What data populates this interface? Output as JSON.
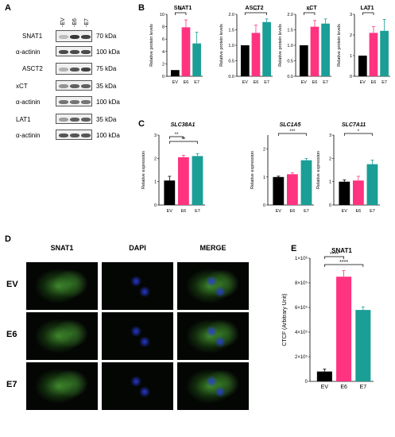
{
  "panel_labels": {
    "a": "A",
    "b": "B",
    "c": "C",
    "d": "D",
    "e": "E"
  },
  "western_blot": {
    "lanes": [
      "-EV",
      "-E6",
      "-E7"
    ],
    "rows": [
      {
        "label": "SNAT1",
        "kda": "70 kDa"
      },
      {
        "label": "α-actinin",
        "kda": "100 kDa"
      },
      {
        "label": "ASCT2",
        "kda": "75 kDa"
      },
      {
        "label": "xCT",
        "kda": "35 kDa"
      },
      {
        "label": "α-actinin",
        "kda": "100 kDa"
      },
      {
        "label": "LAT1",
        "kda": "35 kDa"
      },
      {
        "label": "α-actinin",
        "kda": "100 kDa"
      }
    ]
  },
  "microscopy": {
    "columns": [
      "SNAT1",
      "DAPI",
      "MERGE"
    ],
    "rows": [
      "EV",
      "E6",
      "E7"
    ]
  },
  "colors": {
    "EV": "#000000",
    "E6": "#ff3380",
    "E7": "#1a9e96"
  },
  "chart_data": [
    {
      "type": "bar",
      "title": "SNAT1",
      "ylabel": "Relative protein levels",
      "categories": [
        "EV",
        "E6",
        "E7"
      ],
      "values": [
        1,
        7.9,
        5.3
      ],
      "errors": [
        0,
        1.2,
        1.8
      ],
      "ylim": [
        0,
        10
      ],
      "yticks": [
        "0",
        "2",
        "4",
        "6",
        "8",
        "10"
      ],
      "sig": [
        {
          "from": 0,
          "to": 1,
          "label": "**"
        }
      ]
    },
    {
      "type": "bar",
      "title": "ASCT2",
      "ylabel": "Relative protein levels",
      "categories": [
        "EV",
        "E6",
        "E7"
      ],
      "values": [
        1,
        1.4,
        1.75
      ],
      "errors": [
        0,
        0.25,
        0.1
      ],
      "ylim": [
        0,
        2.0
      ],
      "yticks": [
        "0.0",
        "0.5",
        "1.0",
        "1.5",
        "2.0"
      ],
      "sig": [
        {
          "from": 0,
          "to": 2,
          "label": "***"
        }
      ]
    },
    {
      "type": "bar",
      "title": "xCT",
      "ylabel": "Relative protein levels",
      "categories": [
        "EV",
        "E6",
        "E7"
      ],
      "values": [
        1,
        1.6,
        1.7
      ],
      "errors": [
        0,
        0.2,
        0.15
      ],
      "ylim": [
        0,
        2.0
      ],
      "yticks": [
        "0.0",
        "0.5",
        "1.0",
        "1.5",
        "2.0"
      ],
      "sig": [
        {
          "from": 0,
          "to": 1,
          "label": "**"
        }
      ]
    },
    {
      "type": "bar",
      "title": "LAT1",
      "ylabel": "Relative protein levels",
      "categories": [
        "EV",
        "E6",
        "E7"
      ],
      "values": [
        1,
        2.1,
        2.2
      ],
      "errors": [
        0,
        0.3,
        0.55
      ],
      "ylim": [
        0,
        3
      ],
      "yticks": [
        "0",
        "1",
        "2",
        "3"
      ],
      "sig": [
        {
          "from": 0,
          "to": 1,
          "label": "*"
        }
      ]
    },
    {
      "type": "bar",
      "title": "SLC38A1",
      "ylabel": "Relative expression",
      "categories": [
        "EV",
        "E6",
        "E7"
      ],
      "values": [
        1.05,
        2.05,
        2.1
      ],
      "errors": [
        0.18,
        0.08,
        0.1
      ],
      "ylim": [
        0,
        3
      ],
      "yticks": [
        "0",
        "1",
        "2",
        "3"
      ],
      "sig": [
        {
          "from": 0,
          "to": 1,
          "label": "**"
        },
        {
          "from": 0,
          "to": 2,
          "label": "**"
        }
      ]
    },
    {
      "type": "bar",
      "title": "SLC1A5",
      "ylabel": "Relative expression",
      "categories": [
        "EV",
        "E6",
        "E7"
      ],
      "values": [
        1.0,
        1.1,
        1.6
      ],
      "errors": [
        0.03,
        0.05,
        0.06
      ],
      "ylim": [
        0,
        2.5
      ],
      "yticks": [
        "0",
        "1",
        "2"
      ],
      "sig": [
        {
          "from": 0,
          "to": 2,
          "label": "***"
        }
      ]
    },
    {
      "type": "bar",
      "title": "SLC7A11",
      "ylabel": "Relative expression",
      "categories": [
        "EV",
        "E6",
        "E7"
      ],
      "values": [
        1.0,
        1.05,
        1.75
      ],
      "errors": [
        0.08,
        0.18,
        0.18
      ],
      "ylim": [
        0,
        3
      ],
      "yticks": [
        "0",
        "1",
        "2",
        "3"
      ],
      "sig": [
        {
          "from": 0,
          "to": 2,
          "label": "*"
        }
      ]
    },
    {
      "type": "bar",
      "title": "SNAT1",
      "ylabel": "CTCF (Arbitrary Unit)",
      "categories": [
        "EV",
        "E6",
        "E7"
      ],
      "values": [
        80000,
        850000,
        580000
      ],
      "errors": [
        20000,
        50000,
        25000
      ],
      "ylim": [
        0,
        1000000
      ],
      "yticks": [
        "0",
        "2×10⁵",
        "4×10⁵",
        "6×10⁵",
        "8×10⁵",
        "1×10⁶"
      ],
      "sig": [
        {
          "from": 0,
          "to": 1,
          "label": "****"
        },
        {
          "from": 0,
          "to": 2,
          "label": "****"
        }
      ]
    }
  ]
}
